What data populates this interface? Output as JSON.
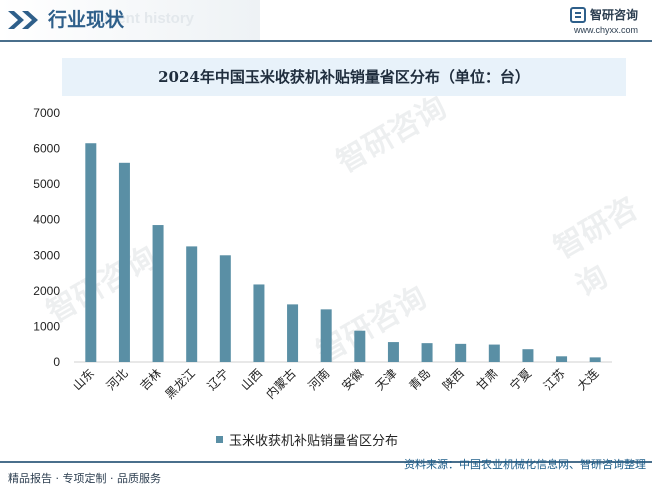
{
  "header": {
    "title": "行业现状",
    "ghost_text": "ment history"
  },
  "brand": {
    "name": "智研咨询",
    "url": "www.chyxx.com"
  },
  "watermark": "智研咨询",
  "chart_data": {
    "type": "bar",
    "title": "2024年中国玉米收获机补贴销量省区分布（单位：台）",
    "categories": [
      "山东",
      "河北",
      "吉林",
      "黑龙江",
      "辽宁",
      "山西",
      "内蒙古",
      "河南",
      "安徽",
      "天津",
      "青岛",
      "陕西",
      "甘肃",
      "宁夏",
      "江苏",
      "大连"
    ],
    "series": [
      {
        "name": "玉米收获机补贴销量省区分布",
        "values": [
          6150,
          5600,
          3850,
          3250,
          3000,
          2180,
          1620,
          1480,
          880,
          560,
          530,
          510,
          490,
          360,
          160,
          130
        ]
      }
    ],
    "ylim": [
      0,
      7000
    ],
    "yticks": [
      "0",
      "1000",
      "2000",
      "3000",
      "4000",
      "5000",
      "6000",
      "7000"
    ],
    "color": "#5a8fa5",
    "grid": false,
    "legend_position": "bottom"
  },
  "footer": {
    "left": "精品报告 · 专项定制 · 品质服务",
    "source": "资料来源：中国农业机械化信息网、智研咨询整理"
  }
}
